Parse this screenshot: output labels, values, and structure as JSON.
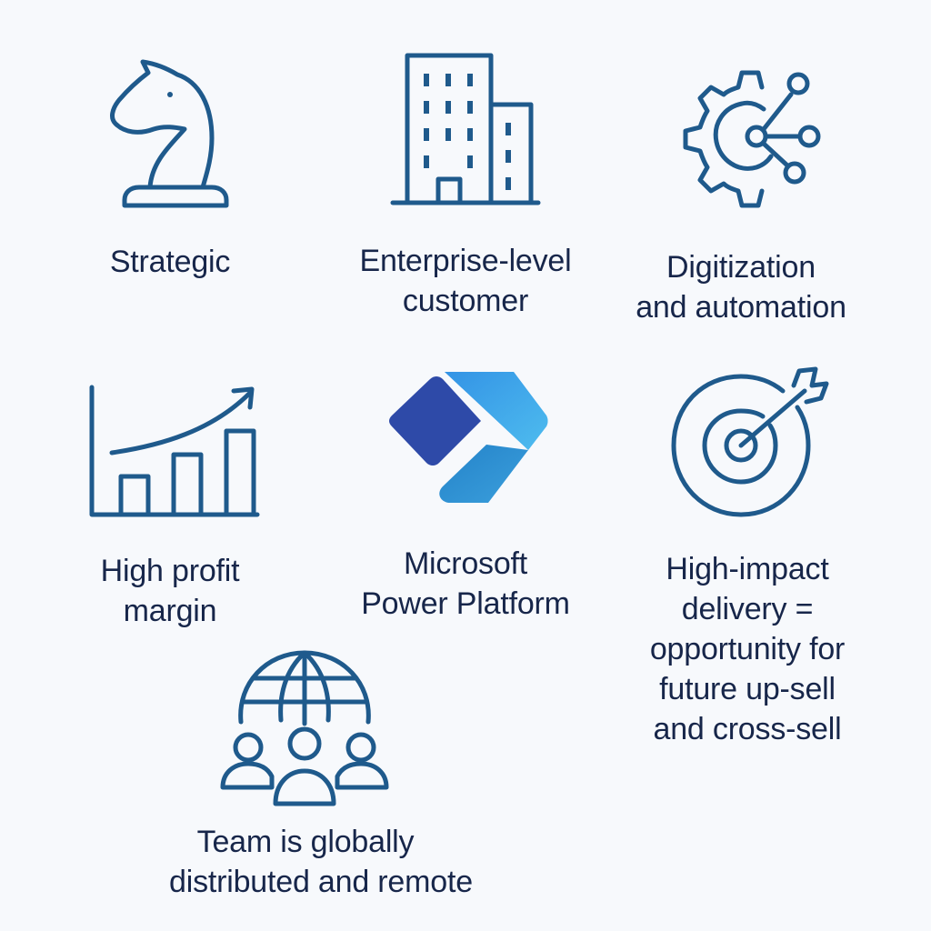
{
  "colors": {
    "icon_stroke": "#1f5a8c",
    "text": "#17264a",
    "background": "#f7f9fc"
  },
  "items": [
    {
      "id": "strategic",
      "icon": "chess-knight-icon",
      "lines": [
        "Strategic"
      ]
    },
    {
      "id": "enterprise",
      "icon": "office-buildings-icon",
      "lines": [
        "Enterprise-level",
        "customer"
      ]
    },
    {
      "id": "digitization",
      "icon": "gear-network-icon",
      "lines": [
        "Digitization",
        "and automation"
      ]
    },
    {
      "id": "profit",
      "icon": "bar-chart-growth-icon",
      "lines": [
        "High profit",
        "margin"
      ]
    },
    {
      "id": "power-platform",
      "icon": "power-platform-logo-icon",
      "lines": [
        "Microsoft",
        "Power Platform"
      ]
    },
    {
      "id": "impact",
      "icon": "target-arrow-icon",
      "lines": [
        "High-impact",
        "delivery =",
        "opportunity for",
        "future up-sell",
        "and cross-sell"
      ]
    },
    {
      "id": "team",
      "icon": "globe-team-icon",
      "lines": [
        "Team is globally",
        "distributed and remote"
      ]
    }
  ]
}
